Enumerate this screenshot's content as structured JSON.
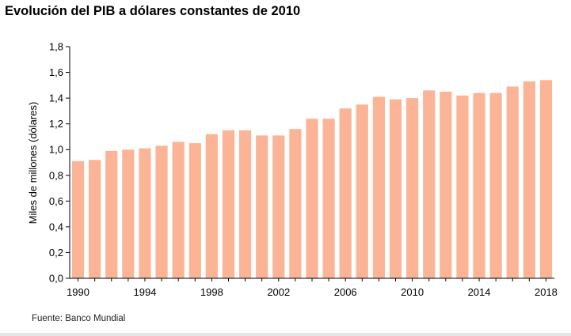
{
  "title": "Evolución del PIB a dólares constantes de 2010",
  "source": "Fuente: Banco Mundial",
  "colors": {
    "bar": "#fcb497",
    "axis": "#000000"
  },
  "chart_data": {
    "type": "bar",
    "title": "Evolución del PIB a dólares constantes de 2010",
    "xlabel": "",
    "ylabel": "Miles de millones (dólares)",
    "ylim": [
      0,
      1.8
    ],
    "yticks": [
      "0,0",
      "0,2",
      "0,4",
      "0,6",
      "0,8",
      "1,0",
      "1,2",
      "1,4",
      "1,6",
      "1,8"
    ],
    "xtick_labels": [
      "1990",
      "1994",
      "1998",
      "2002",
      "2006",
      "2010",
      "2014",
      "2018"
    ],
    "categories": [
      "1990",
      "1991",
      "1992",
      "1993",
      "1994",
      "1995",
      "1996",
      "1997",
      "1998",
      "1999",
      "2000",
      "2001",
      "2002",
      "2003",
      "2004",
      "2005",
      "2006",
      "2007",
      "2008",
      "2009",
      "2010",
      "2011",
      "2012",
      "2013",
      "2014",
      "2015",
      "2016",
      "2017",
      "2018"
    ],
    "values": [
      0.91,
      0.92,
      0.99,
      1.0,
      1.01,
      1.03,
      1.06,
      1.05,
      1.12,
      1.15,
      1.15,
      1.11,
      1.11,
      1.16,
      1.24,
      1.24,
      1.32,
      1.35,
      1.41,
      1.39,
      1.4,
      1.46,
      1.45,
      1.42,
      1.44,
      1.44,
      1.49,
      1.53,
      1.54
    ],
    "grid": false,
    "legend": "none"
  }
}
